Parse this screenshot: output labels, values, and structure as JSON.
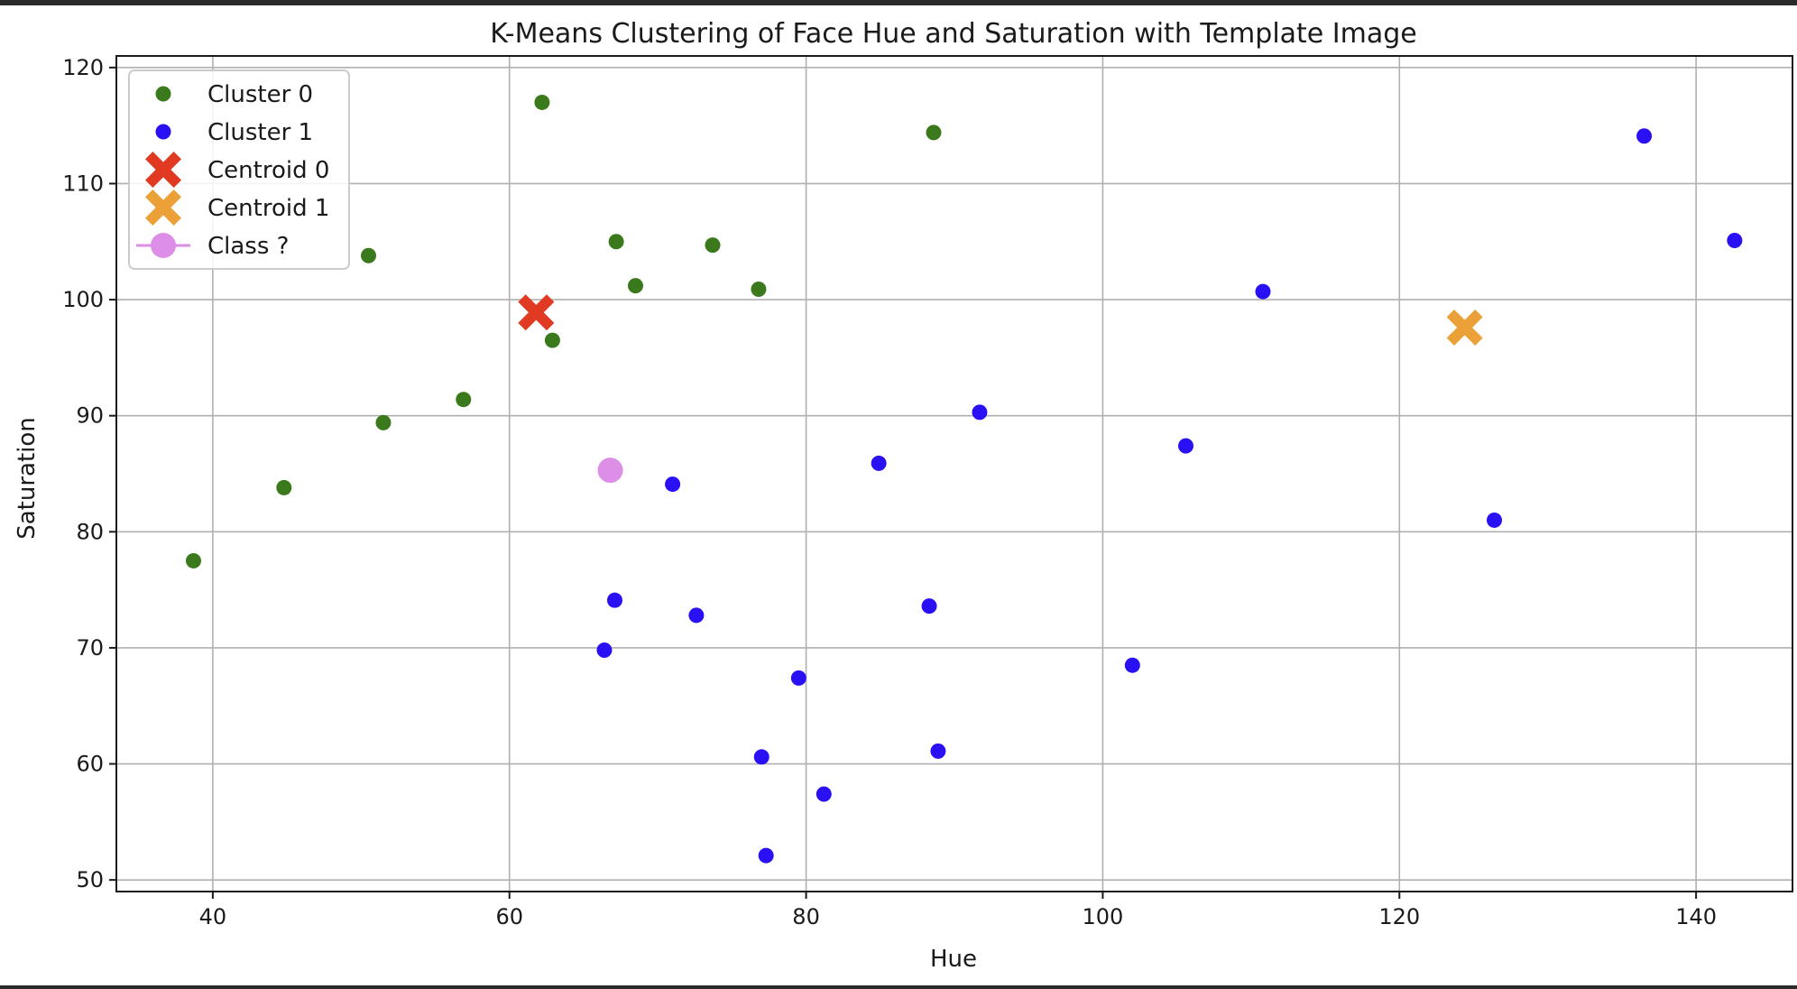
{
  "chart_data": {
    "type": "scatter",
    "title": "K-Means Clustering of Face Hue and Saturation with Template Image",
    "xlabel": "Hue",
    "ylabel": "Saturation",
    "xlim": [
      33.5,
      146.5
    ],
    "ylim": [
      49,
      121
    ],
    "xticks": [
      40,
      60,
      80,
      100,
      120,
      140
    ],
    "yticks": [
      50,
      60,
      70,
      80,
      90,
      100,
      110,
      120
    ],
    "grid": true,
    "legend_position": "top-left",
    "series": [
      {
        "name": "Cluster 0",
        "marker": "circle",
        "color": "#3a7a1c",
        "points": [
          [
            62.2,
            117.0
          ],
          [
            88.6,
            114.4
          ],
          [
            50.5,
            103.8
          ],
          [
            67.2,
            105.0
          ],
          [
            73.7,
            104.7
          ],
          [
            68.5,
            101.2
          ],
          [
            76.8,
            100.9
          ],
          [
            62.9,
            96.5
          ],
          [
            56.9,
            91.4
          ],
          [
            51.5,
            89.4
          ],
          [
            44.8,
            83.8
          ],
          [
            38.7,
            77.5
          ]
        ]
      },
      {
        "name": "Cluster 1",
        "marker": "circle",
        "color": "#2a10f5",
        "points": [
          [
            136.5,
            114.1
          ],
          [
            142.6,
            105.1
          ],
          [
            110.8,
            100.7
          ],
          [
            91.7,
            90.3
          ],
          [
            105.6,
            87.4
          ],
          [
            84.9,
            85.9
          ],
          [
            71.0,
            84.1
          ],
          [
            126.4,
            81.0
          ],
          [
            67.1,
            74.1
          ],
          [
            88.3,
            73.6
          ],
          [
            72.6,
            72.8
          ],
          [
            66.4,
            69.8
          ],
          [
            102.0,
            68.5
          ],
          [
            79.5,
            67.4
          ],
          [
            88.9,
            61.1
          ],
          [
            77.0,
            60.6
          ],
          [
            81.2,
            57.4
          ],
          [
            77.3,
            52.1
          ]
        ]
      },
      {
        "name": "Centroid 0",
        "marker": "x",
        "color": "#e03a22",
        "points": [
          [
            61.8,
            98.9
          ]
        ]
      },
      {
        "name": "Centroid 1",
        "marker": "x",
        "color": "#eba138",
        "points": [
          [
            124.4,
            97.6
          ]
        ]
      },
      {
        "name": "Class ?",
        "marker": "circle-line",
        "color": "#dd8ee6",
        "points": [
          [
            66.8,
            85.3
          ]
        ]
      }
    ]
  }
}
